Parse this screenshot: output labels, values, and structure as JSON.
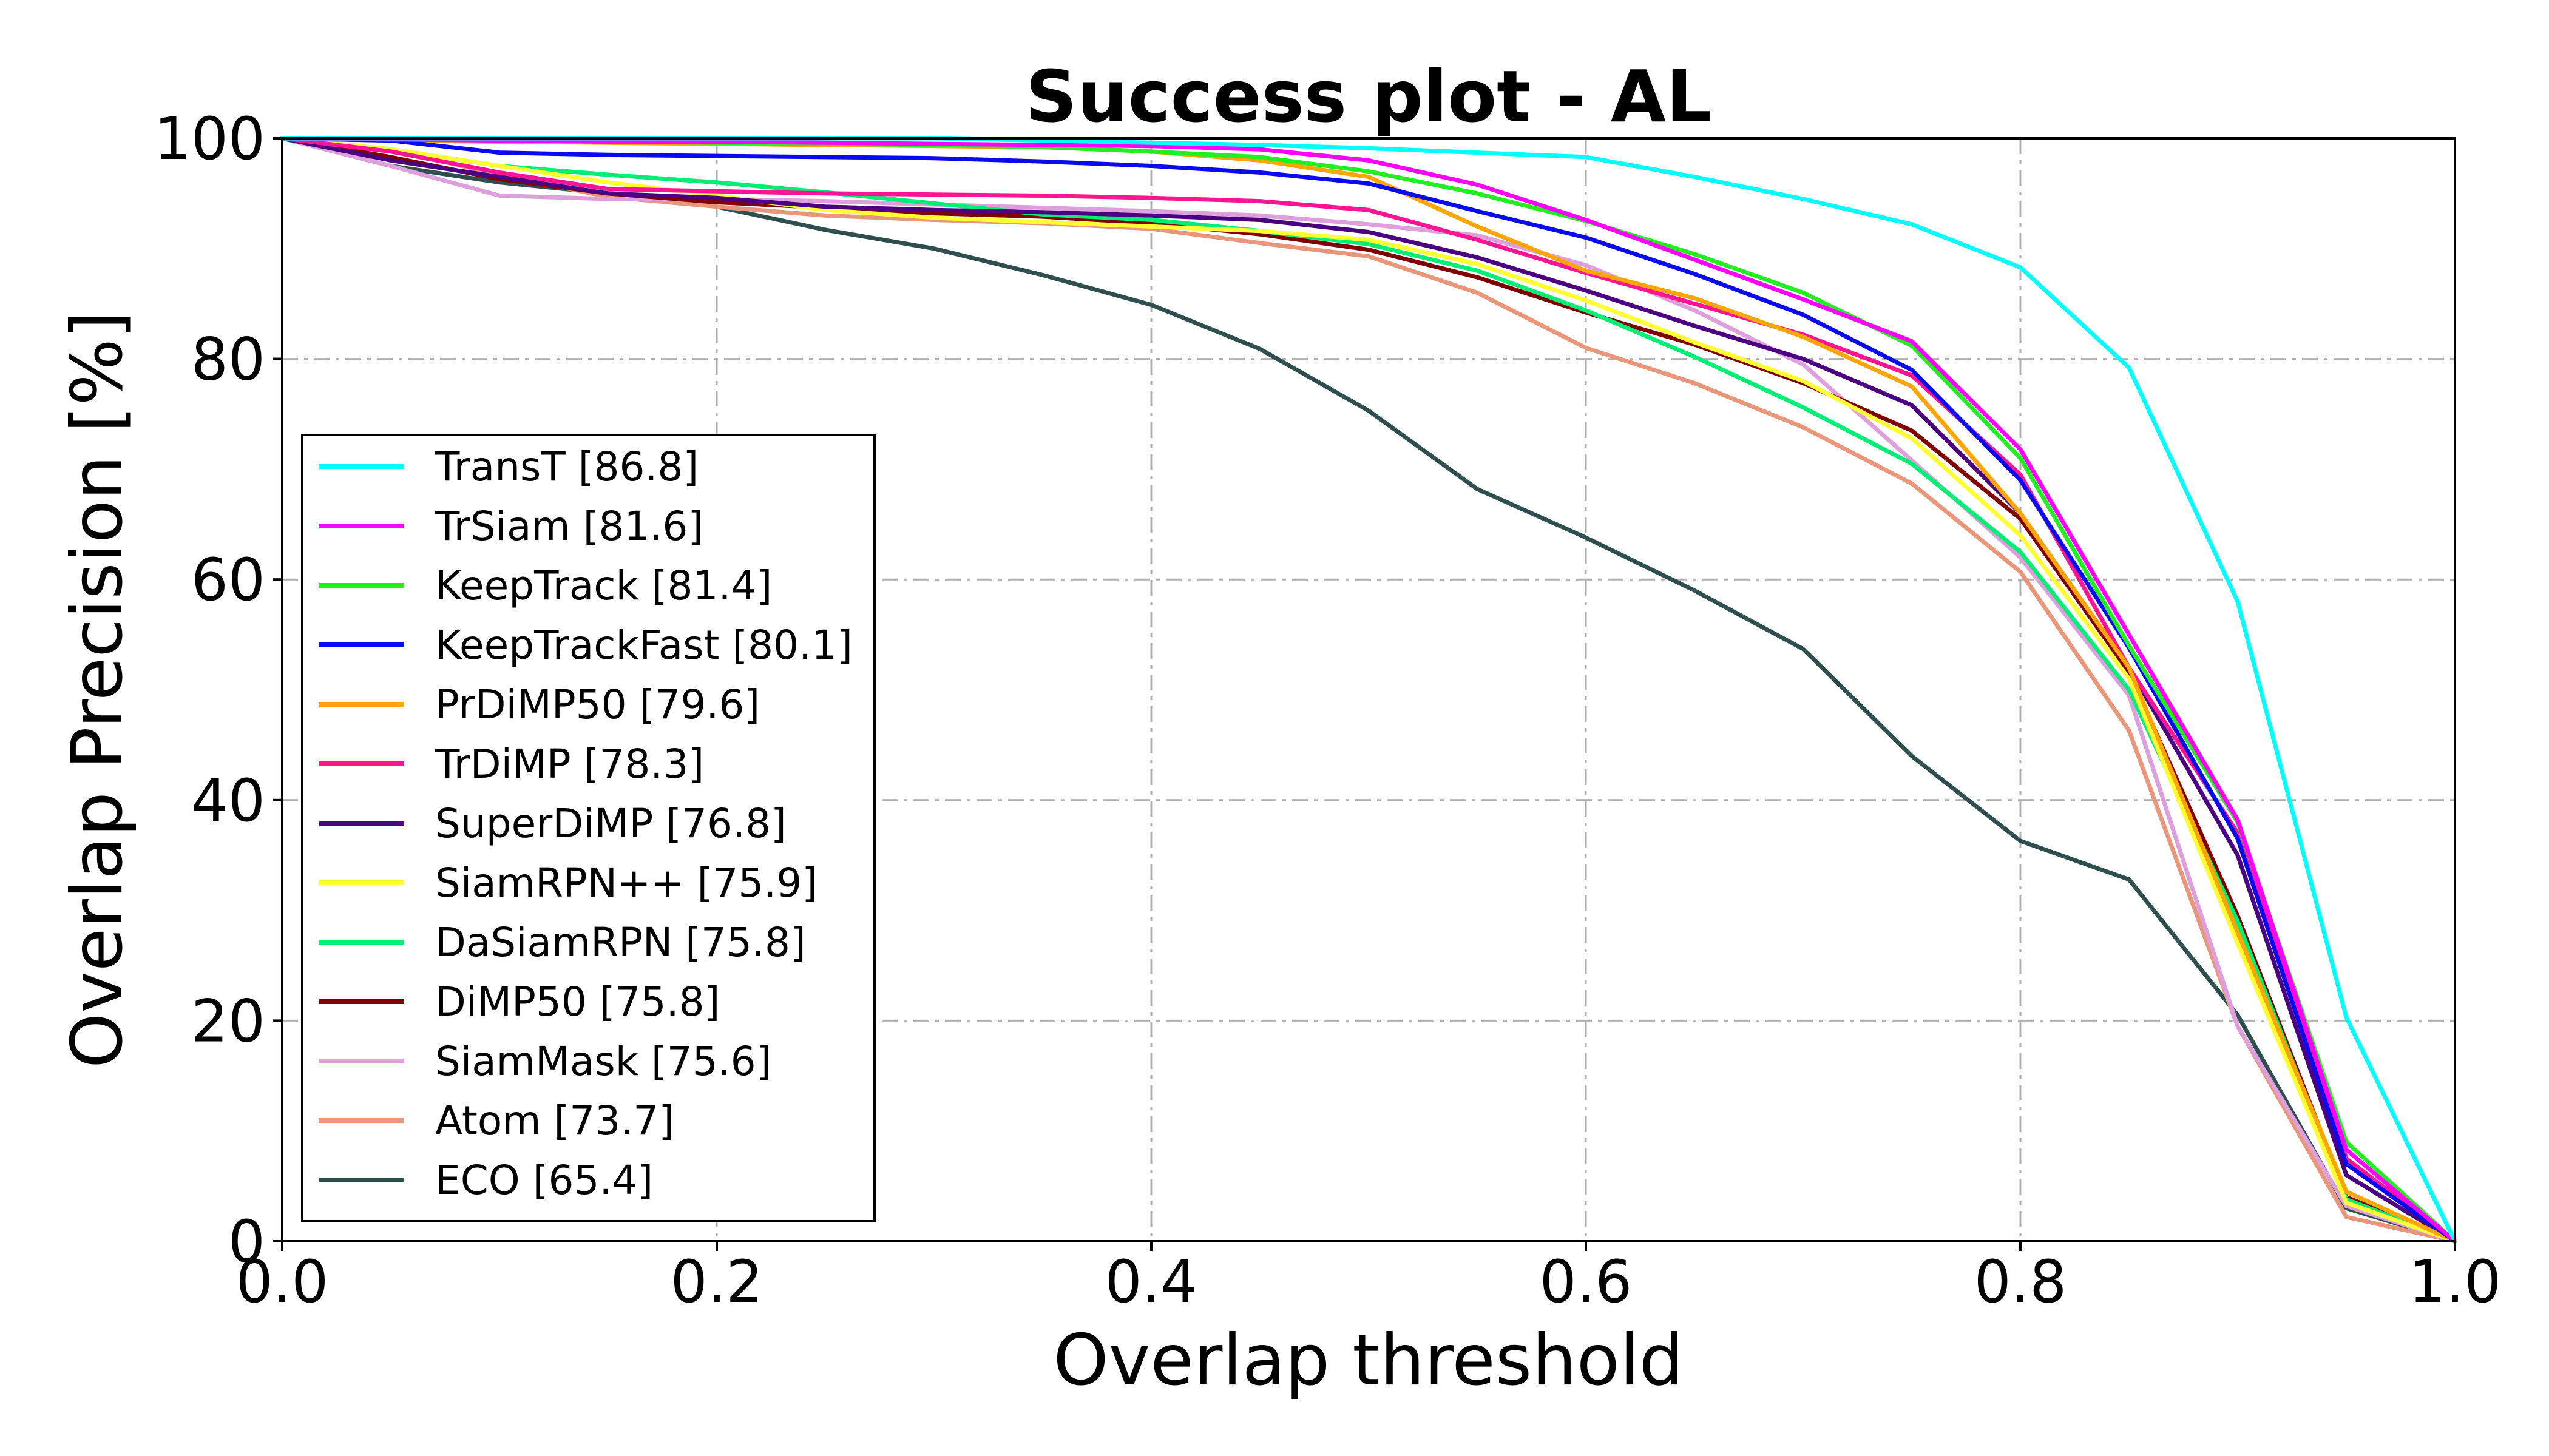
{
  "chart_data": {
    "type": "line",
    "title": "Success plot - AL",
    "xlabel": "Overlap threshold",
    "ylabel": "Overlap Precision [%]",
    "xlim": [
      0.0,
      1.0
    ],
    "ylim": [
      0,
      100
    ],
    "xticks": [
      "0.0",
      "0.2",
      "0.4",
      "0.6",
      "0.8",
      "1.0"
    ],
    "yticks": [
      "0",
      "20",
      "40",
      "60",
      "80",
      "100"
    ],
    "grid": true,
    "legend_position": "left",
    "x": [
      0.0,
      0.05,
      0.1,
      0.15,
      0.2,
      0.25,
      0.3,
      0.35,
      0.4,
      0.45,
      0.5,
      0.55,
      0.6,
      0.65,
      0.7,
      0.75,
      0.8,
      0.85,
      0.9,
      0.95,
      1.0
    ],
    "series": [
      {
        "name": "TransT [86.8]",
        "color": "#00ffff",
        "values": [
          100,
          100,
          100,
          100,
          100,
          100,
          100,
          99.8,
          99.6,
          99.4,
          99.1,
          98.7,
          98.3,
          96.5,
          94.5,
          92.2,
          88.3,
          79.2,
          58.0,
          20.3,
          0
        ]
      },
      {
        "name": "TrSiam [81.6]",
        "color": "#ff00ff",
        "values": [
          100,
          99.9,
          99.8,
          99.7,
          99.7,
          99.6,
          99.5,
          99.4,
          99.3,
          99.0,
          98.0,
          95.8,
          92.6,
          89.0,
          85.4,
          81.6,
          71.8,
          55.0,
          38.2,
          8.3,
          0
        ]
      },
      {
        "name": "KeepTrack [81.4]",
        "color": "#22ee22",
        "values": [
          100,
          99.9,
          99.8,
          99.7,
          99.6,
          99.5,
          99.4,
          99.2,
          98.8,
          98.3,
          97.0,
          95.0,
          92.5,
          89.5,
          86.0,
          81.2,
          71.0,
          54.0,
          38.0,
          9.0,
          0
        ]
      },
      {
        "name": "KeepTrackFast [80.1]",
        "color": "#0a0aee",
        "values": [
          100,
          99.8,
          98.7,
          98.5,
          98.4,
          98.3,
          98.2,
          97.9,
          97.5,
          96.9,
          95.9,
          93.4,
          91.0,
          87.7,
          84.0,
          79.0,
          69.0,
          53.8,
          36.5,
          7.0,
          0
        ]
      },
      {
        "name": "PrDiMP50 [79.6]",
        "color": "#ffa500",
        "values": [
          100,
          99.8,
          99.7,
          99.6,
          99.5,
          99.4,
          99.3,
          99.2,
          98.8,
          98.0,
          96.5,
          92.0,
          88.0,
          85.5,
          82.0,
          77.5,
          66.0,
          52.0,
          28.0,
          4.5,
          0
        ]
      },
      {
        "name": "TrDiMP [78.3]",
        "color": "#ff1493",
        "values": [
          100,
          98.8,
          96.9,
          95.4,
          95.2,
          95.0,
          94.9,
          94.8,
          94.6,
          94.3,
          93.5,
          90.8,
          87.8,
          85.0,
          82.2,
          78.5,
          69.5,
          52.0,
          37.0,
          7.5,
          0
        ]
      },
      {
        "name": "SuperDiMP [76.8]",
        "color": "#4b0082",
        "values": [
          100,
          98.0,
          96.5,
          95.0,
          94.6,
          93.8,
          93.5,
          93.3,
          93.0,
          92.6,
          91.5,
          89.2,
          86.2,
          83.0,
          80.0,
          75.8,
          66.0,
          52.0,
          35.0,
          6.0,
          0
        ]
      },
      {
        "name": "SiamRPN++ [75.9]",
        "color": "#ffff33",
        "values": [
          100,
          99.0,
          97.5,
          96.0,
          94.8,
          93.5,
          92.8,
          92.4,
          92.0,
          91.6,
          90.8,
          88.6,
          85.3,
          81.5,
          78.0,
          72.8,
          64.0,
          51.0,
          27.0,
          3.5,
          0
        ]
      },
      {
        "name": "DaSiamRPN [75.8]",
        "color": "#00ee76",
        "values": [
          100,
          99.0,
          97.5,
          96.7,
          96.0,
          95.1,
          94.1,
          93.1,
          92.6,
          91.6,
          90.4,
          88.0,
          84.4,
          80.2,
          75.6,
          70.5,
          62.5,
          50.0,
          29.0,
          3.8,
          0
        ]
      },
      {
        "name": "DiMP50 [75.8]",
        "color": "#800000",
        "values": [
          100,
          98.3,
          96.3,
          95.0,
          94.2,
          93.7,
          93.2,
          92.9,
          92.3,
          91.3,
          89.9,
          87.4,
          84.2,
          81.3,
          77.8,
          73.5,
          65.5,
          51.6,
          29.5,
          4.0,
          0
        ]
      },
      {
        "name": "SiamMask [75.6]",
        "color": "#dda0dd",
        "values": [
          100,
          97.5,
          94.8,
          94.5,
          94.5,
          94.3,
          94.0,
          93.7,
          93.4,
          93.0,
          92.2,
          91.2,
          88.5,
          84.4,
          79.5,
          70.8,
          62.0,
          49.5,
          19.5,
          3.2,
          0
        ]
      },
      {
        "name": "Atom [73.7]",
        "color": "#e9967a",
        "values": [
          100,
          99.0,
          96.7,
          94.7,
          93.8,
          93.0,
          92.6,
          92.3,
          91.8,
          90.5,
          89.3,
          86.0,
          81.0,
          77.8,
          73.8,
          68.7,
          60.7,
          46.3,
          19.5,
          2.2,
          0
        ]
      },
      {
        "name": "ECO [65.4]",
        "color": "#2f4f4f",
        "values": [
          100,
          97.5,
          96.0,
          95.0,
          93.8,
          91.7,
          90.0,
          87.6,
          84.9,
          80.9,
          75.3,
          68.2,
          63.8,
          59.0,
          53.7,
          44.0,
          36.3,
          32.8,
          20.5,
          3.0,
          0
        ]
      }
    ]
  }
}
